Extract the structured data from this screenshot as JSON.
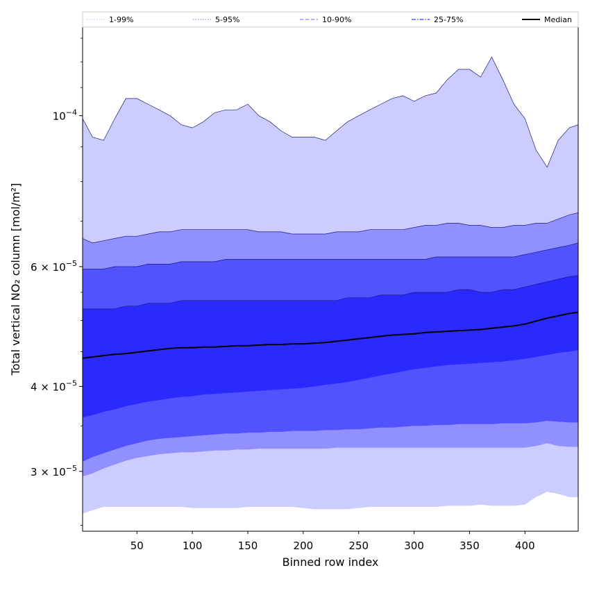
{
  "chart_data": {
    "type": "area",
    "title": "",
    "xlabel": "Binned row index",
    "ylabel": "Total vertical NO₂ column [mol/m²]",
    "yscale": "log",
    "xlim": [
      1,
      448
    ],
    "ylim": [
      2.45e-05,
      0.000135
    ],
    "x_ticks": [
      50,
      100,
      150,
      200,
      250,
      300,
      350,
      400
    ],
    "x_tick_labels": [
      "50",
      "100",
      "150",
      "200",
      "250",
      "300",
      "350",
      "400"
    ],
    "y_tick_labels": [
      {
        "value": 0.0001,
        "mantissa": "10",
        "exponent": "−4"
      },
      {
        "value": 6e-05,
        "mantissa": "6 × 10",
        "exponent": "−5"
      },
      {
        "value": 4e-05,
        "mantissa": "4 × 10",
        "exponent": "−5"
      },
      {
        "value": 3e-05,
        "mantissa": "3 × 10",
        "exponent": "−5"
      }
    ],
    "y_minor_ticks": [
      2.5e-05,
      3.5e-05,
      4.5e-05,
      5e-05,
      5.5e-05,
      7e-05,
      8e-05,
      9e-05,
      0.00011,
      0.00012,
      0.00013
    ],
    "x": [
      1,
      10,
      20,
      30,
      40,
      50,
      60,
      70,
      80,
      90,
      100,
      110,
      120,
      130,
      140,
      150,
      160,
      170,
      180,
      190,
      200,
      210,
      220,
      230,
      240,
      250,
      260,
      270,
      280,
      290,
      300,
      310,
      320,
      330,
      340,
      350,
      360,
      370,
      380,
      390,
      400,
      410,
      420,
      430,
      440,
      448
    ],
    "series": [
      {
        "name": "1-99%",
        "color": "#ccccff",
        "lower": [
          2.6e-05,
          2.63e-05,
          2.66e-05,
          2.66e-05,
          2.66e-05,
          2.66e-05,
          2.66e-05,
          2.66e-05,
          2.66e-05,
          2.66e-05,
          2.65e-05,
          2.65e-05,
          2.65e-05,
          2.65e-05,
          2.65e-05,
          2.66e-05,
          2.66e-05,
          2.66e-05,
          2.66e-05,
          2.66e-05,
          2.65e-05,
          2.64e-05,
          2.64e-05,
          2.64e-05,
          2.64e-05,
          2.65e-05,
          2.66e-05,
          2.66e-05,
          2.66e-05,
          2.66e-05,
          2.66e-05,
          2.66e-05,
          2.66e-05,
          2.67e-05,
          2.67e-05,
          2.67e-05,
          2.68e-05,
          2.67e-05,
          2.67e-05,
          2.67e-05,
          2.68e-05,
          2.75e-05,
          2.8e-05,
          2.78e-05,
          2.75e-05,
          2.75e-05
        ],
        "upper": [
          9.9e-05,
          9.3e-05,
          9.2e-05,
          9.9e-05,
          0.000106,
          0.000106,
          0.000104,
          0.000102,
          0.0001,
          9.7e-05,
          9.6e-05,
          9.8e-05,
          0.000101,
          0.000102,
          0.000102,
          0.000104,
          0.0001,
          9.8e-05,
          9.5e-05,
          9.3e-05,
          9.3e-05,
          9.3e-05,
          9.2e-05,
          9.5e-05,
          9.8e-05,
          0.0001,
          0.000102,
          0.000104,
          0.000106,
          0.000107,
          0.000105,
          0.000107,
          0.000108,
          0.000113,
          0.000117,
          0.000117,
          0.000114,
          0.000122,
          0.000113,
          0.000104,
          9.9e-05,
          8.9e-05,
          8.4e-05,
          9.2e-05,
          9.6e-05,
          9.7e-05
        ]
      },
      {
        "name": "5-95%",
        "color": "#9090ff",
        "lower": [
          2.95e-05,
          2.98e-05,
          3.03e-05,
          3.07e-05,
          3.11e-05,
          3.14e-05,
          3.16e-05,
          3.18e-05,
          3.19e-05,
          3.2e-05,
          3.2e-05,
          3.21e-05,
          3.22e-05,
          3.22e-05,
          3.23e-05,
          3.23e-05,
          3.24e-05,
          3.24e-05,
          3.24e-05,
          3.24e-05,
          3.24e-05,
          3.24e-05,
          3.24e-05,
          3.25e-05,
          3.25e-05,
          3.25e-05,
          3.25e-05,
          3.25e-05,
          3.25e-05,
          3.25e-05,
          3.25e-05,
          3.25e-05,
          3.25e-05,
          3.25e-05,
          3.25e-05,
          3.25e-05,
          3.25e-05,
          3.25e-05,
          3.25e-05,
          3.25e-05,
          3.25e-05,
          3.27e-05,
          3.3e-05,
          3.27e-05,
          3.26e-05,
          3.26e-05
        ],
        "upper": [
          6.6e-05,
          6.5e-05,
          6.55e-05,
          6.6e-05,
          6.65e-05,
          6.65e-05,
          6.7e-05,
          6.75e-05,
          6.75e-05,
          6.8e-05,
          6.8e-05,
          6.8e-05,
          6.8e-05,
          6.8e-05,
          6.8e-05,
          6.8e-05,
          6.75e-05,
          6.75e-05,
          6.75e-05,
          6.7e-05,
          6.7e-05,
          6.7e-05,
          6.7e-05,
          6.75e-05,
          6.75e-05,
          6.75e-05,
          6.8e-05,
          6.8e-05,
          6.8e-05,
          6.8e-05,
          6.85e-05,
          6.9e-05,
          6.9e-05,
          6.95e-05,
          6.95e-05,
          6.9e-05,
          6.9e-05,
          6.85e-05,
          6.85e-05,
          6.9e-05,
          6.9e-05,
          6.95e-05,
          6.95e-05,
          7.05e-05,
          7.15e-05,
          7.2e-05
        ]
      },
      {
        "name": "10-90%",
        "color": "#5252ff",
        "lower": [
          3.1e-05,
          3.15e-05,
          3.19e-05,
          3.23e-05,
          3.27e-05,
          3.3e-05,
          3.33e-05,
          3.35e-05,
          3.36e-05,
          3.37e-05,
          3.38e-05,
          3.39e-05,
          3.4e-05,
          3.41e-05,
          3.41e-05,
          3.42e-05,
          3.42e-05,
          3.43e-05,
          3.43e-05,
          3.44e-05,
          3.44e-05,
          3.44e-05,
          3.45e-05,
          3.45e-05,
          3.46e-05,
          3.46e-05,
          3.47e-05,
          3.48e-05,
          3.48e-05,
          3.49e-05,
          3.5e-05,
          3.5e-05,
          3.51e-05,
          3.51e-05,
          3.52e-05,
          3.52e-05,
          3.52e-05,
          3.52e-05,
          3.53e-05,
          3.53e-05,
          3.53e-05,
          3.54e-05,
          3.56e-05,
          3.55e-05,
          3.54e-05,
          3.54e-05
        ],
        "upper": [
          5.95e-05,
          5.95e-05,
          5.95e-05,
          6e-05,
          6e-05,
          6e-05,
          6.05e-05,
          6.05e-05,
          6.05e-05,
          6.1e-05,
          6.1e-05,
          6.1e-05,
          6.1e-05,
          6.15e-05,
          6.15e-05,
          6.15e-05,
          6.15e-05,
          6.15e-05,
          6.15e-05,
          6.15e-05,
          6.15e-05,
          6.15e-05,
          6.15e-05,
          6.15e-05,
          6.15e-05,
          6.15e-05,
          6.15e-05,
          6.15e-05,
          6.15e-05,
          6.15e-05,
          6.15e-05,
          6.15e-05,
          6.2e-05,
          6.2e-05,
          6.2e-05,
          6.2e-05,
          6.2e-05,
          6.2e-05,
          6.2e-05,
          6.2e-05,
          6.25e-05,
          6.3e-05,
          6.35e-05,
          6.4e-05,
          6.45e-05,
          6.5e-05
        ]
      },
      {
        "name": "25-75%",
        "color": "#2a2aff",
        "lower": [
          3.6e-05,
          3.63e-05,
          3.67e-05,
          3.7e-05,
          3.74e-05,
          3.77e-05,
          3.8e-05,
          3.82e-05,
          3.84e-05,
          3.86e-05,
          3.87e-05,
          3.89e-05,
          3.9e-05,
          3.91e-05,
          3.92e-05,
          3.93e-05,
          3.94e-05,
          3.95e-05,
          3.96e-05,
          3.97e-05,
          3.98e-05,
          4e-05,
          4.02e-05,
          4.04e-05,
          4.06e-05,
          4.09e-05,
          4.12e-05,
          4.15e-05,
          4.18e-05,
          4.21e-05,
          4.24e-05,
          4.26e-05,
          4.28e-05,
          4.3e-05,
          4.31e-05,
          4.32e-05,
          4.33e-05,
          4.34e-05,
          4.35e-05,
          4.37e-05,
          4.39e-05,
          4.42e-05,
          4.45e-05,
          4.48e-05,
          4.5e-05,
          4.52e-05
        ],
        "upper": [
          5.2e-05,
          5.2e-05,
          5.2e-05,
          5.2e-05,
          5.25e-05,
          5.25e-05,
          5.3e-05,
          5.3e-05,
          5.3e-05,
          5.35e-05,
          5.35e-05,
          5.35e-05,
          5.35e-05,
          5.35e-05,
          5.35e-05,
          5.35e-05,
          5.35e-05,
          5.35e-05,
          5.35e-05,
          5.35e-05,
          5.35e-05,
          5.35e-05,
          5.35e-05,
          5.35e-05,
          5.4e-05,
          5.4e-05,
          5.4e-05,
          5.45e-05,
          5.45e-05,
          5.45e-05,
          5.5e-05,
          5.5e-05,
          5.5e-05,
          5.5e-05,
          5.55e-05,
          5.55e-05,
          5.5e-05,
          5.5e-05,
          5.55e-05,
          5.55e-05,
          5.6e-05,
          5.65e-05,
          5.7e-05,
          5.75e-05,
          5.8e-05,
          5.82e-05
        ]
      },
      {
        "name": "Median",
        "color": "#000000",
        "values": [
          4.4e-05,
          4.42e-05,
          4.44e-05,
          4.46e-05,
          4.47e-05,
          4.49e-05,
          4.51e-05,
          4.53e-05,
          4.55e-05,
          4.56e-05,
          4.56e-05,
          4.57e-05,
          4.57e-05,
          4.58e-05,
          4.59e-05,
          4.59e-05,
          4.6e-05,
          4.61e-05,
          4.61e-05,
          4.62e-05,
          4.62e-05,
          4.63e-05,
          4.64e-05,
          4.66e-05,
          4.68e-05,
          4.7e-05,
          4.72e-05,
          4.74e-05,
          4.76e-05,
          4.77e-05,
          4.78e-05,
          4.8e-05,
          4.81e-05,
          4.82e-05,
          4.83e-05,
          4.84e-05,
          4.85e-05,
          4.87e-05,
          4.89e-05,
          4.91e-05,
          4.94e-05,
          4.99e-05,
          5.04e-05,
          5.08e-05,
          5.12e-05,
          5.14e-05
        ]
      }
    ],
    "legend": {
      "placement": "top",
      "entries": [
        {
          "label": "1-99%",
          "style": "dotted",
          "color": "#ccccff"
        },
        {
          "label": "5-95%",
          "style": "dotted",
          "color": "#9090ff"
        },
        {
          "label": "10-90%",
          "style": "dashed",
          "color": "#8080ff"
        },
        {
          "label": "25-75%",
          "style": "dashdot",
          "color": "#3a3aff"
        },
        {
          "label": "Median",
          "style": "solid",
          "color": "#000000"
        }
      ]
    }
  }
}
